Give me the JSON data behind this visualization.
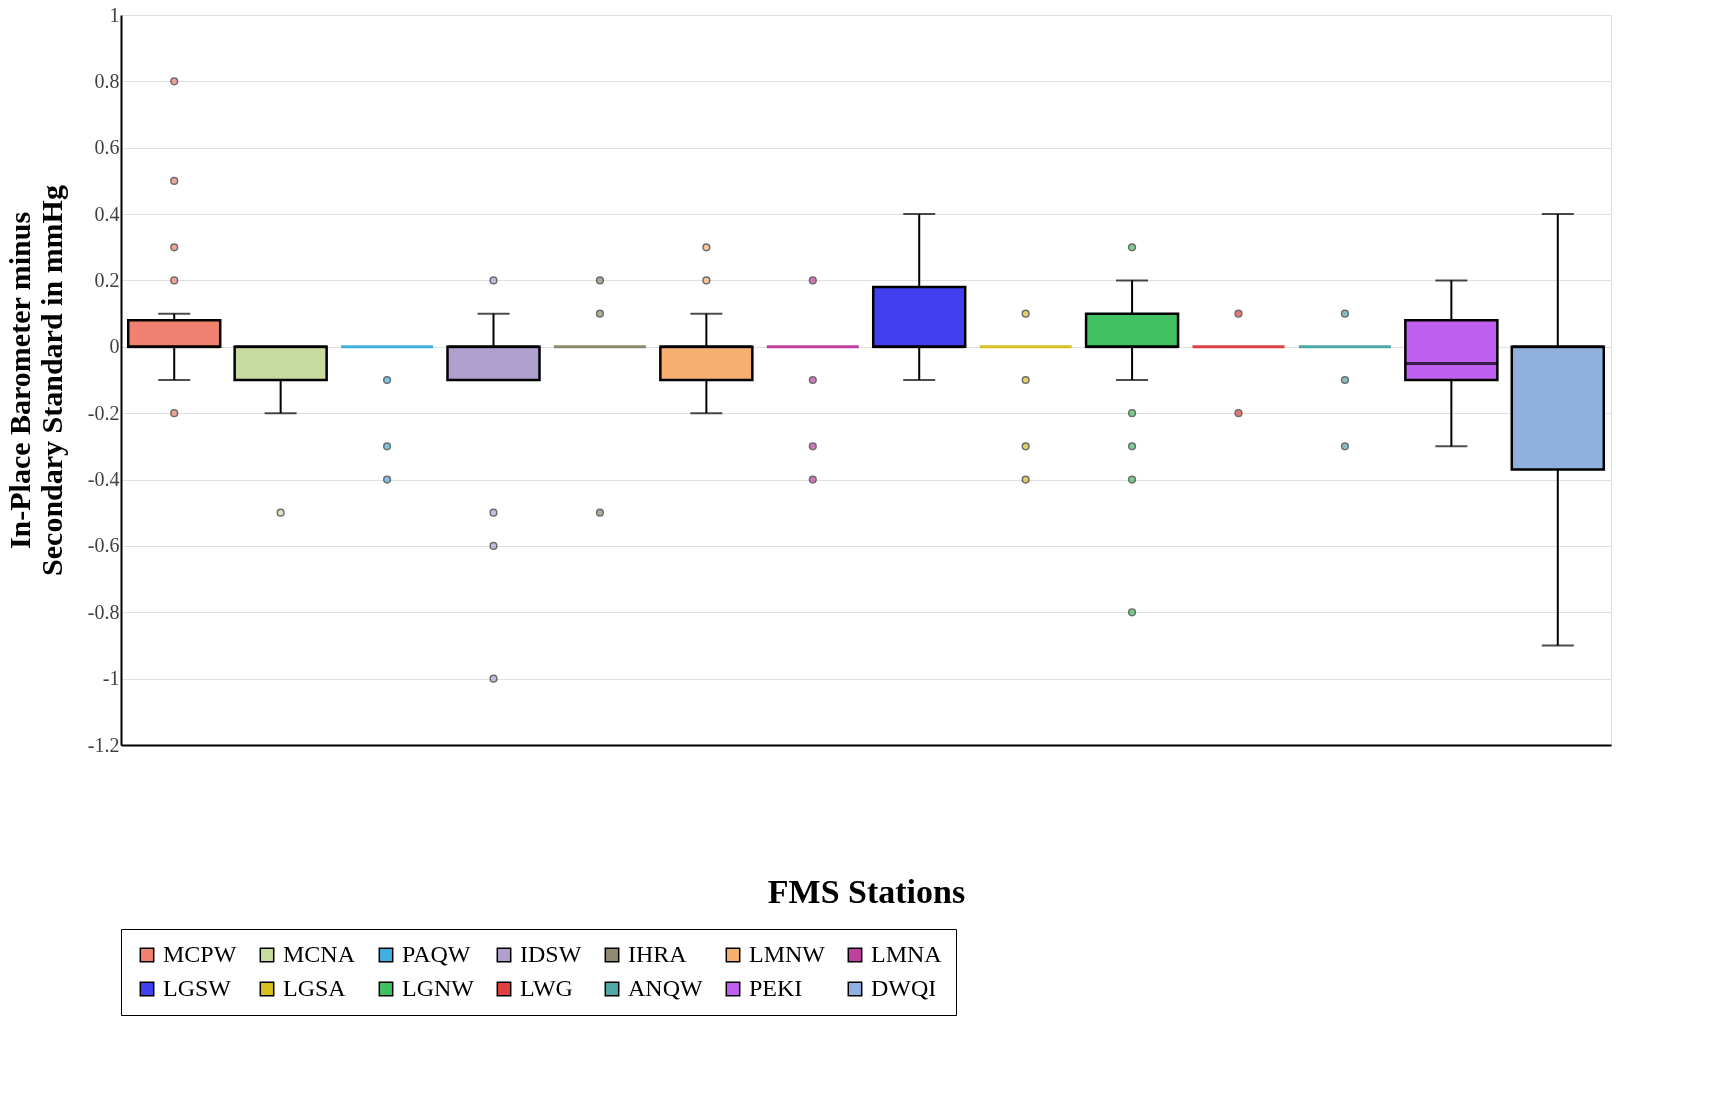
{
  "chart_data": {
    "type": "box",
    "xlabel": "FMS Stations",
    "ylabel": "In-Place Barometer minus\nSecondary Standard in mmHg",
    "categories": [
      null,
      null,
      null,
      null,
      null,
      null,
      null,
      null,
      null,
      null,
      null,
      null,
      null,
      null
    ],
    "ylim": [
      -1.2,
      1
    ],
    "yticks": [
      -1.2,
      -1,
      -0.8,
      -0.6,
      -0.4,
      -0.2,
      0,
      0.2,
      0.4,
      0.6,
      0.8,
      1
    ],
    "grid": "y",
    "legend": "bottom",
    "tick_labels": "y",
    "series": [
      {
        "name": "MCPW",
        "color": "#f08070",
        "boxes": [
          {
            "low": -0.1,
            "q1": 0,
            "median": 0,
            "q3": 0.08,
            "high": 0.1,
            "outliers": [
              0.8,
              0.5,
              0.3,
              0.2,
              -0.2
            ]
          },
          null,
          null,
          null,
          null,
          null,
          null,
          null,
          null,
          null,
          null,
          null,
          null,
          null
        ]
      },
      {
        "name": "MCNA",
        "color": "#c8dca0",
        "boxes": [
          null,
          {
            "low": -0.2,
            "q1": -0.1,
            "median": 0,
            "q3": 0,
            "high": 0,
            "outliers": [
              -0.5
            ]
          },
          null,
          null,
          null,
          null,
          null,
          null,
          null,
          null,
          null,
          null,
          null,
          null
        ]
      },
      {
        "name": "PAQW",
        "color": "#40b0e0",
        "boxes": [
          null,
          null,
          {
            "low": 0,
            "q1": 0,
            "median": 0,
            "q3": 0,
            "high": 0,
            "outliers": [
              -0.1,
              -0.3,
              -0.4
            ]
          },
          null,
          null,
          null,
          null,
          null,
          null,
          null,
          null,
          null,
          null,
          null
        ]
      },
      {
        "name": "IDSW",
        "color": "#b0a0d0",
        "boxes": [
          null,
          null,
          null,
          {
            "low": -0.1,
            "q1": -0.1,
            "median": 0,
            "q3": 0,
            "high": 0.1,
            "outliers": [
              0.2,
              -0.5,
              -0.6,
              -1
            ]
          },
          null,
          null,
          null,
          null,
          null,
          null,
          null,
          null,
          null,
          null
        ]
      },
      {
        "name": "IHRA",
        "color": "#908870",
        "boxes": [
          null,
          null,
          null,
          null,
          {
            "low": 0,
            "q1": 0,
            "median": 0,
            "q3": 0,
            "high": 0,
            "outliers": [
              0.2,
              0.1,
              -0.5
            ]
          },
          null,
          null,
          null,
          null,
          null,
          null,
          null,
          null,
          null
        ]
      },
      {
        "name": "LMNW",
        "color": "#f8b070",
        "boxes": [
          null,
          null,
          null,
          null,
          null,
          {
            "low": -0.2,
            "q1": -0.1,
            "median": 0,
            "q3": 0,
            "high": 0.1,
            "outliers": [
              0.3,
              0.2
            ]
          },
          null,
          null,
          null,
          null,
          null,
          null,
          null,
          null
        ]
      },
      {
        "name": "LMNA",
        "color": "#c040a0",
        "boxes": [
          null,
          null,
          null,
          null,
          null,
          null,
          {
            "low": 0,
            "q1": 0,
            "median": 0,
            "q3": 0,
            "high": 0,
            "outliers": [
              0.2,
              -0.1,
              -0.3,
              -0.4
            ]
          },
          null,
          null,
          null,
          null,
          null,
          null,
          null
        ]
      },
      {
        "name": "LGSW",
        "color": "#4040f0",
        "boxes": [
          null,
          null,
          null,
          null,
          null,
          null,
          null,
          {
            "low": -0.1,
            "q1": 0,
            "median": 0,
            "q3": 0.18,
            "high": 0.4
          },
          null,
          null,
          null,
          null,
          null,
          null
        ]
      },
      {
        "name": "LGSA",
        "color": "#d8c020",
        "boxes": [
          null,
          null,
          null,
          null,
          null,
          null,
          null,
          null,
          {
            "low": 0,
            "q1": 0,
            "median": 0,
            "q3": 0,
            "high": 0,
            "outliers": [
              0.1,
              -0.1,
              -0.3,
              -0.4
            ]
          },
          null,
          null,
          null,
          null,
          null
        ]
      },
      {
        "name": "LGNW",
        "color": "#40c060",
        "boxes": [
          null,
          null,
          null,
          null,
          null,
          null,
          null,
          null,
          null,
          {
            "low": -0.1,
            "q1": 0,
            "median": 0,
            "q3": 0.1,
            "high": 0.2,
            "outliers": [
              0.3,
              -0.2,
              -0.3,
              -0.4,
              -0.8
            ]
          },
          null,
          null,
          null,
          null
        ]
      },
      {
        "name": "LWG",
        "color": "#e04040",
        "boxes": [
          null,
          null,
          null,
          null,
          null,
          null,
          null,
          null,
          null,
          null,
          {
            "low": 0,
            "q1": 0,
            "median": 0,
            "q3": 0,
            "high": 0,
            "outliers": [
              0.1,
              -0.2
            ]
          },
          null,
          null,
          null
        ]
      },
      {
        "name": "ANQW",
        "color": "#50a8a8",
        "boxes": [
          null,
          null,
          null,
          null,
          null,
          null,
          null,
          null,
          null,
          null,
          null,
          {
            "low": 0,
            "q1": 0,
            "median": 0,
            "q3": 0,
            "high": 0,
            "outliers": [
              0.1,
              -0.1,
              -0.3
            ]
          },
          null,
          null
        ]
      },
      {
        "name": "PEKI",
        "color": "#c060f0",
        "boxes": [
          null,
          null,
          null,
          null,
          null,
          null,
          null,
          null,
          null,
          null,
          null,
          null,
          {
            "low": -0.3,
            "q1": -0.1,
            "median": -0.05,
            "q3": 0.08,
            "high": 0.2
          },
          null
        ]
      },
      {
        "name": "DWQI",
        "color": "#90b0e0",
        "boxes": [
          null,
          null,
          null,
          null,
          null,
          null,
          null,
          null,
          null,
          null,
          null,
          null,
          null,
          {
            "low": -0.9,
            "q1": -0.37,
            "median": 0,
            "q3": 0,
            "high": 0.4
          }
        ]
      }
    ]
  }
}
